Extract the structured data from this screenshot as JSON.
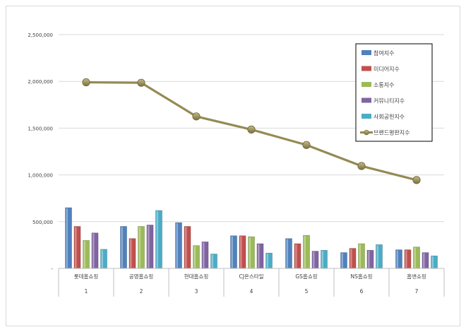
{
  "chart_data": {
    "type": "bar",
    "categories": [
      "롯데홈쇼핑",
      "공영홈쇼핑",
      "현대홈쇼핑",
      "CJ온스타일",
      "GS홈쇼핑",
      "NS홈쇼핑",
      "홈앤쇼핑"
    ],
    "category_numbers": [
      "1",
      "2",
      "3",
      "4",
      "5",
      "6",
      "7"
    ],
    "ylim": [
      0,
      2500000
    ],
    "yticks": [
      "-",
      "500,000",
      "1,000,000",
      "1,500,000",
      "2,000,000",
      "2,500,000"
    ],
    "grid": true,
    "legend_position": "top-right",
    "series": [
      {
        "name": "참여지수",
        "kind": "bar",
        "color": "#4f81bd",
        "values": [
          650000,
          450000,
          490000,
          350000,
          320000,
          170000,
          200000
        ]
      },
      {
        "name": "미디어지수",
        "kind": "bar",
        "color": "#c0504d",
        "values": [
          450000,
          320000,
          450000,
          350000,
          265000,
          215000,
          200000
        ]
      },
      {
        "name": "소통지수",
        "kind": "bar",
        "color": "#9bbb59",
        "values": [
          300000,
          450000,
          245000,
          340000,
          355000,
          265000,
          230000
        ]
      },
      {
        "name": "커뮤니티지수",
        "kind": "bar",
        "color": "#8064a2",
        "values": [
          380000,
          465000,
          285000,
          265000,
          185000,
          195000,
          170000
        ]
      },
      {
        "name": "사회공헌지수",
        "kind": "bar",
        "color": "#4bacc6",
        "values": [
          205000,
          620000,
          155000,
          165000,
          195000,
          255000,
          135000
        ]
      },
      {
        "name": "브랜드평판지수",
        "kind": "line",
        "color": "#948a54",
        "values": [
          1990000,
          1985000,
          1625000,
          1485000,
          1320000,
          1095000,
          945000
        ]
      }
    ]
  }
}
